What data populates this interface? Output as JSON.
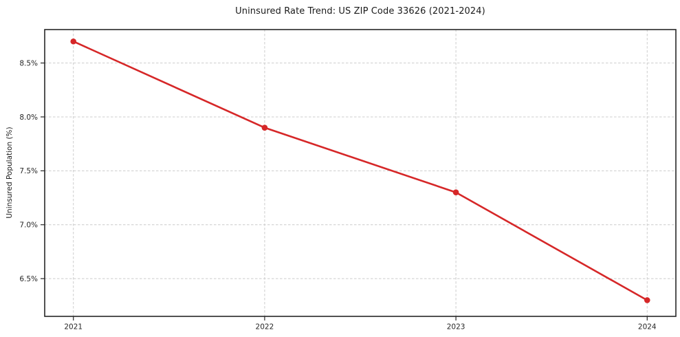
{
  "chart_data": {
    "type": "line",
    "title": "Uninsured Rate Trend: US ZIP Code 33626 (2021-2024)",
    "xlabel": "",
    "ylabel": "Uninsured Population (%)",
    "x": [
      2021,
      2022,
      2023,
      2024
    ],
    "x_tick_labels": [
      "2021",
      "2022",
      "2023",
      "2024"
    ],
    "series": [
      {
        "name": "Uninsured rate",
        "values": [
          8.7,
          7.9,
          7.3,
          6.3
        ]
      }
    ],
    "y_ticks": [
      6.5,
      7.0,
      7.5,
      8.0,
      8.5
    ],
    "y_tick_labels": [
      "6.5%",
      "7.0%",
      "7.5%",
      "8.0%",
      "8.5%"
    ],
    "xlim": [
      2020.85,
      2024.15
    ],
    "ylim": [
      6.15,
      8.81
    ],
    "grid": true,
    "grid_style": "dashed",
    "grid_color": "#cccccc",
    "line_color": "#d62728",
    "marker": "circle",
    "legend_position": "none"
  }
}
